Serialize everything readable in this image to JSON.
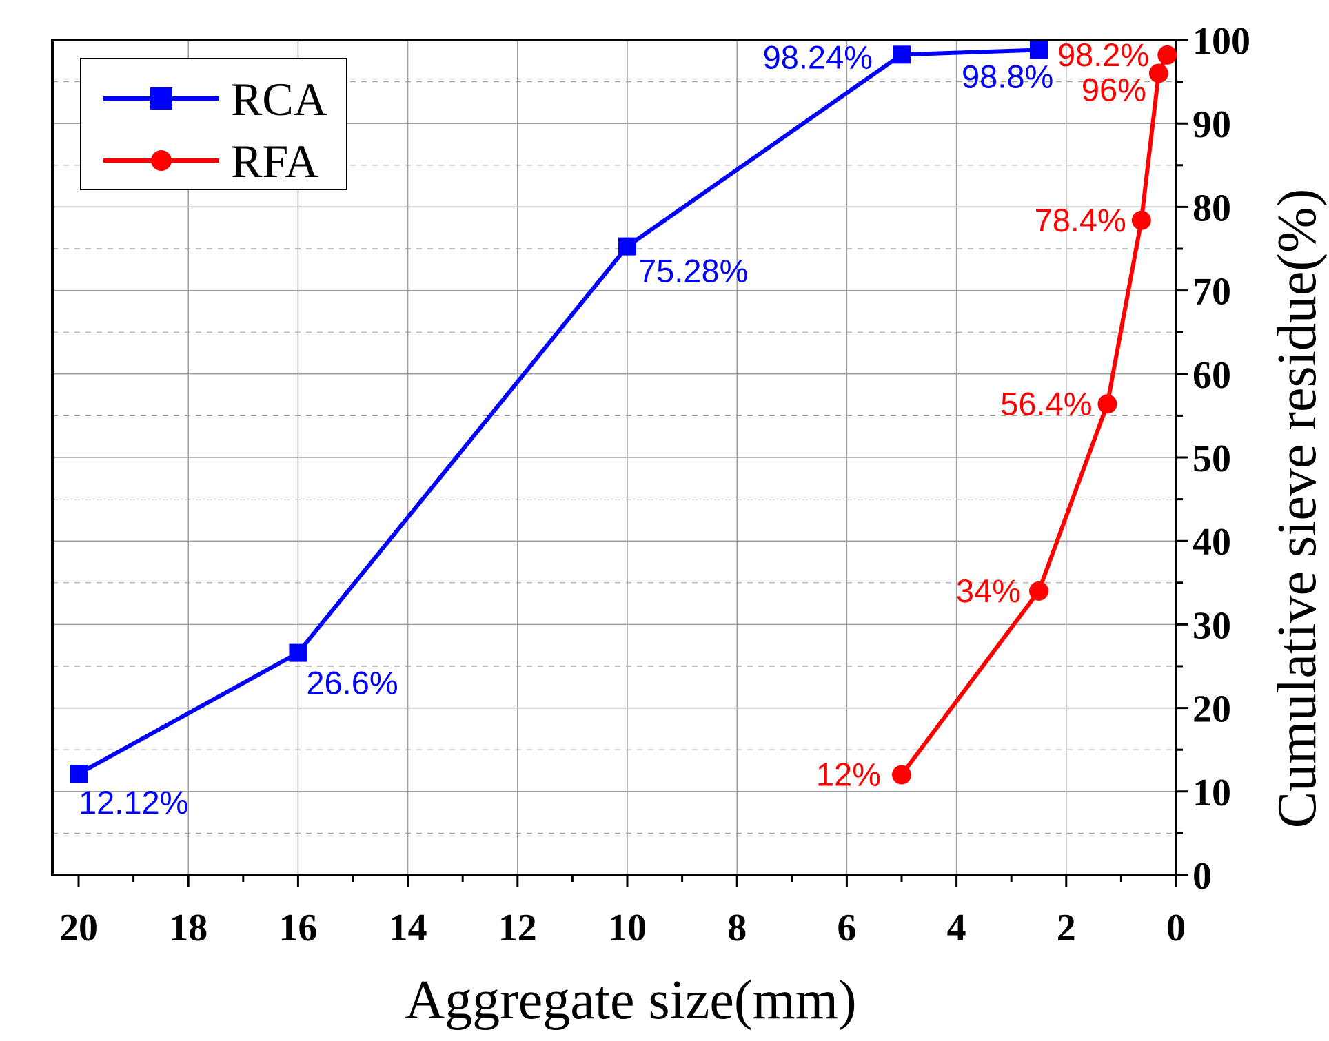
{
  "colors": {
    "rca": "#0000ff",
    "rfa": "#ff0000",
    "grid": "#a0a0a0",
    "axis": "#000000"
  },
  "chart_data": {
    "type": "line",
    "xlabel": "Aggregate  size(mm)",
    "ylabel": "Cumulative  sieve  residue(%)",
    "xlim": [
      20,
      0
    ],
    "ylim": [
      0,
      100
    ],
    "x_ticks": [
      "20",
      "18",
      "16",
      "14",
      "12",
      "10",
      "8",
      "6",
      "4",
      "2",
      "0"
    ],
    "y_ticks": [
      "0",
      "10",
      "20",
      "30",
      "40",
      "50",
      "60",
      "70",
      "80",
      "90",
      "100"
    ],
    "legend_position": "top-left",
    "grid": true,
    "series": [
      {
        "name": "RCA",
        "marker": "square",
        "color": "#0000ff",
        "x": [
          20,
          16,
          10,
          5,
          2.5
        ],
        "y": [
          12.12,
          26.6,
          75.28,
          98.24,
          98.8
        ],
        "labels": [
          "12.12%",
          "26.6%",
          "75.28%",
          "98.24%",
          "98.8%"
        ]
      },
      {
        "name": "RFA",
        "marker": "circle",
        "color": "#ff0000",
        "x": [
          5,
          2.5,
          1.25,
          0.63,
          0.315,
          0.16
        ],
        "y": [
          12,
          34,
          56.4,
          78.4,
          96,
          98.2
        ],
        "labels": [
          "12%",
          "34%",
          "56.4%",
          "78.4%",
          "96%",
          "98.2%"
        ]
      }
    ]
  }
}
